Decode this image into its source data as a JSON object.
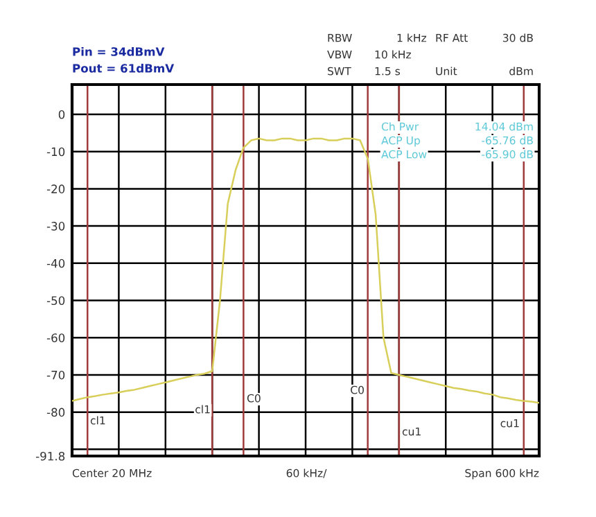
{
  "chart_data": {
    "type": "line",
    "categories": [
      null,
      null,
      null,
      null,
      null,
      null,
      null,
      null,
      null,
      null,
      null,
      null,
      null,
      null,
      null,
      null,
      null,
      null,
      null,
      null,
      null,
      null,
      null,
      null,
      null,
      null,
      null,
      null,
      null,
      null,
      null,
      null,
      null,
      null,
      null,
      null,
      null,
      null,
      null,
      null,
      null,
      null,
      null,
      null,
      null,
      null,
      null,
      null,
      null,
      null,
      null,
      null,
      null,
      null,
      null,
      null,
      null,
      null,
      null,
      null,
      null
    ],
    "series": [
      {
        "color": "#d8cf5a",
        "values": [
          -77,
          -76.5,
          -76,
          -75.7,
          -75.3,
          -75,
          -74.7,
          -74.3,
          -74,
          -73.5,
          -73,
          -72.5,
          -72,
          -71.5,
          -71,
          -70.5,
          -70,
          -69.7,
          -69,
          -50,
          -24,
          -15,
          -9,
          -7,
          -6.5,
          -7,
          -7,
          -6.5,
          -6.5,
          -7,
          -7,
          -6.5,
          -6.5,
          -7,
          -7,
          -6.5,
          -6.5,
          -7,
          -12,
          -27,
          -60,
          -69.5,
          -70,
          -70.5,
          -71,
          -71.5,
          -72,
          -72.5,
          -73,
          -73.5,
          -73.8,
          -74.2,
          -74.5,
          -75,
          -75.3,
          -76,
          -76.3,
          -76.7,
          -77,
          -77.2,
          -77.5
        ]
      }
    ],
    "ylim": [
      -91.8,
      8
    ],
    "yticks": [
      {
        "value": -91.8,
        "label": "-91.8"
      },
      {
        "value": -90,
        "label": null
      },
      {
        "value": -80,
        "label": "-80"
      },
      {
        "value": -70,
        "label": "-70"
      },
      {
        "value": -60,
        "label": "-60"
      },
      {
        "value": -50,
        "label": "-50"
      },
      {
        "value": -40,
        "label": "-40"
      },
      {
        "value": -30,
        "label": "-30"
      },
      {
        "value": -20,
        "label": "-20"
      },
      {
        "value": -10,
        "label": "-10"
      },
      {
        "value": 0,
        "label": "0"
      }
    ],
    "grid": true,
    "tick_labels": "y",
    "line_style": "solid",
    "marker": "none",
    "annotations": [
      "Pin = 34dBmV",
      "Pout = 61dBmV",
      "RBW",
      "1 kHz",
      "RF Att",
      "30 dB",
      "VBW",
      "10 kHz",
      "SWT",
      "1.5 s",
      "Unit",
      "dBm",
      "Ch Pwr",
      "14.04 dBm",
      "ACP Up",
      "-65.76 dB",
      "ACP Low",
      "-65.90 dB",
      "Center 20 MHz",
      "60 kHz/",
      "Span 600 kHz",
      "cl1",
      "cl1",
      "C0",
      "C0",
      "cu1",
      "cu1"
    ]
  }
}
